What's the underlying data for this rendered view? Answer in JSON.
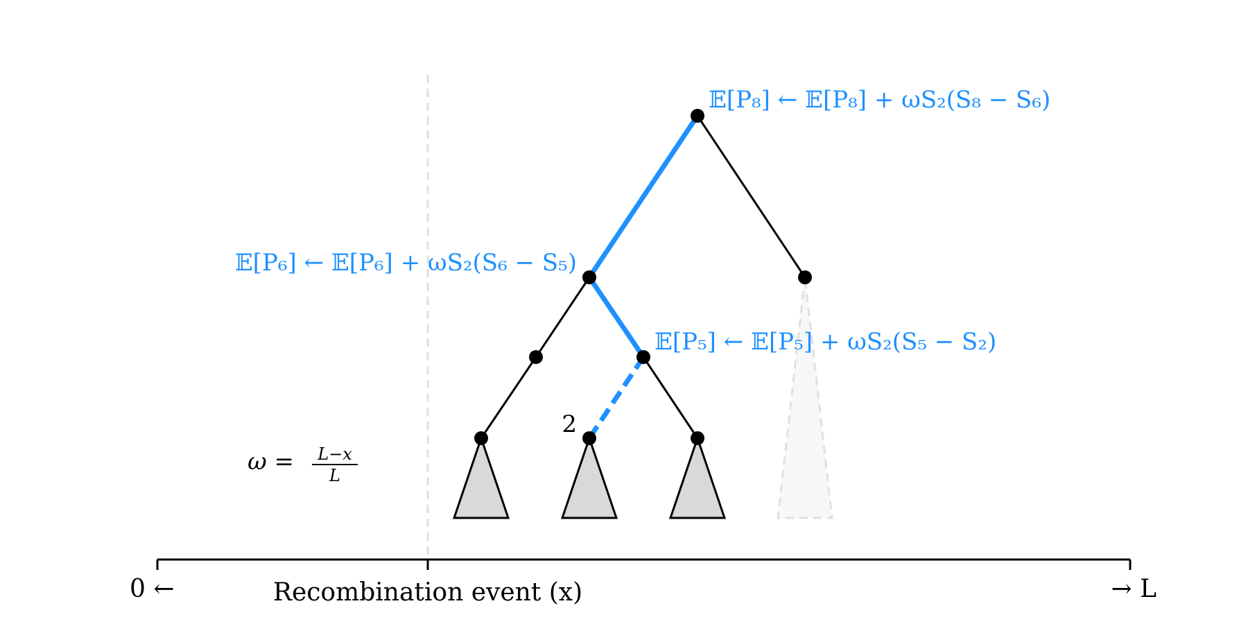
{
  "colors": {
    "highlight": "#1e90ff",
    "edge": "#000000",
    "subtree_fill": "#d9d9d9",
    "ghost_fill": "#f7f7f7",
    "ghost_stroke": "#e0e0e0",
    "event_line": "#e0e0e0"
  },
  "labels": {
    "update_p8": "𝔼[P₈] ← 𝔼[P₈] + ωS₂(S₈ − S₆)",
    "update_p6": "𝔼[P₆] ← 𝔼[P₆] + ωS₂(S₆ − S₅)",
    "update_p5": "𝔼[P₅] ← 𝔼[P₅] + ωS₂(S₅ − S₂)",
    "node_2": "2",
    "omega_lhs": "ω =",
    "omega_num": "L−x",
    "omega_den": "L"
  },
  "axis": {
    "left_label": "0 ←",
    "right_label": "→ L",
    "event_label": "Recombination event (x)"
  }
}
